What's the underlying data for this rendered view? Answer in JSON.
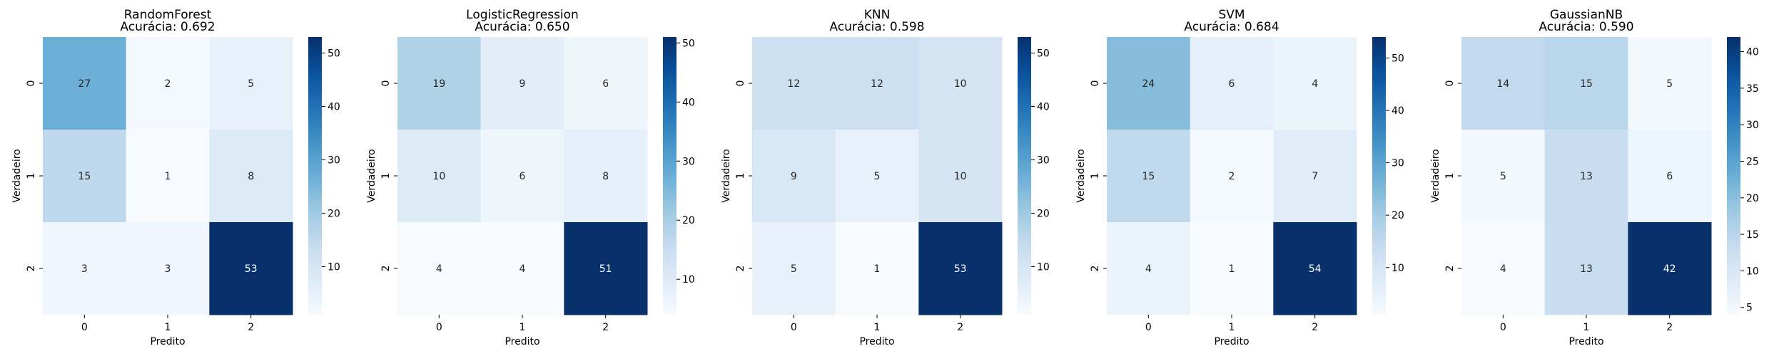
{
  "chart_data": [
    {
      "type": "heatmap",
      "title": "RandomForest",
      "subtitle": "Acurácia: 0.692",
      "xlabel": "Predito",
      "ylabel": "Verdadeiro",
      "x_ticks": [
        "0",
        "1",
        "2"
      ],
      "y_ticks": [
        "0",
        "1",
        "2"
      ],
      "matrix": [
        [
          27,
          2,
          5
        ],
        [
          15,
          1,
          8
        ],
        [
          3,
          3,
          53
        ]
      ],
      "colorbar": {
        "min": 1,
        "max": 53,
        "ticks": [
          10,
          20,
          30,
          40,
          50
        ]
      }
    },
    {
      "type": "heatmap",
      "title": "LogisticRegression",
      "subtitle": "Acurácia: 0.650",
      "xlabel": "Predito",
      "ylabel": "Verdadeiro",
      "x_ticks": [
        "0",
        "1",
        "2"
      ],
      "y_ticks": [
        "0",
        "1",
        "2"
      ],
      "matrix": [
        [
          19,
          9,
          6
        ],
        [
          10,
          6,
          8
        ],
        [
          4,
          4,
          51
        ]
      ],
      "colorbar": {
        "min": 4,
        "max": 51,
        "ticks": [
          10,
          20,
          30,
          40,
          50
        ]
      }
    },
    {
      "type": "heatmap",
      "title": "KNN",
      "subtitle": "Acurácia: 0.598",
      "xlabel": "Predito",
      "ylabel": "Verdadeiro",
      "x_ticks": [
        "0",
        "1",
        "2"
      ],
      "y_ticks": [
        "0",
        "1",
        "2"
      ],
      "matrix": [
        [
          12,
          12,
          10
        ],
        [
          9,
          5,
          10
        ],
        [
          5,
          1,
          53
        ]
      ],
      "colorbar": {
        "min": 1,
        "max": 53,
        "ticks": [
          10,
          20,
          30,
          40,
          50
        ]
      }
    },
    {
      "type": "heatmap",
      "title": "SVM",
      "subtitle": "Acurácia: 0.684",
      "xlabel": "Predito",
      "ylabel": "Verdadeiro",
      "x_ticks": [
        "0",
        "1",
        "2"
      ],
      "y_ticks": [
        "0",
        "1",
        "2"
      ],
      "matrix": [
        [
          24,
          6,
          4
        ],
        [
          15,
          2,
          7
        ],
        [
          4,
          1,
          54
        ]
      ],
      "colorbar": {
        "min": 1,
        "max": 54,
        "ticks": [
          10,
          20,
          30,
          40,
          50
        ]
      }
    },
    {
      "type": "heatmap",
      "title": "GaussianNB",
      "subtitle": "Acurácia: 0.590",
      "xlabel": "Predito",
      "ylabel": "Verdadeiro",
      "x_ticks": [
        "0",
        "1",
        "2"
      ],
      "y_ticks": [
        "0",
        "1",
        "2"
      ],
      "matrix": [
        [
          14,
          15,
          5
        ],
        [
          5,
          13,
          6
        ],
        [
          4,
          13,
          42
        ]
      ],
      "colorbar": {
        "min": 4,
        "max": 42,
        "ticks": [
          5,
          10,
          15,
          20,
          25,
          30,
          35,
          40
        ]
      }
    }
  ],
  "colors": {
    "colormap": "Blues",
    "text_dark": "#262626",
    "text_light": "#ffffff"
  }
}
